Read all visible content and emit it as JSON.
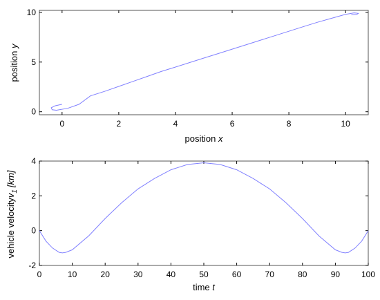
{
  "chart_data": [
    {
      "type": "line",
      "title": "",
      "xlabel": "position",
      "xlabel_var": "x",
      "ylabel": "position",
      "ylabel_var": "y",
      "xlim": [
        -0.8,
        10.8
      ],
      "ylim": [
        -0.3,
        10.2
      ],
      "xticks": [
        0,
        2,
        4,
        6,
        8,
        10
      ],
      "yticks": [
        0,
        5,
        10
      ],
      "grid": false,
      "line_color": "#8080ff",
      "series": [
        {
          "x": [
            0.0,
            -0.25,
            -0.38,
            -0.35,
            -0.2,
            0.2,
            0.6,
            1.0,
            1.5,
            2.0,
            2.5,
            3.0,
            3.5,
            4.0,
            4.5,
            5.0,
            5.5,
            6.0,
            6.5,
            7.0,
            7.5,
            8.0,
            8.5,
            9.0,
            9.5,
            10.0,
            10.3,
            10.45,
            10.4,
            10.2
          ],
          "y": [
            0.75,
            0.6,
            0.4,
            0.2,
            0.15,
            0.35,
            0.75,
            1.6,
            2.05,
            2.55,
            3.05,
            3.55,
            4.05,
            4.5,
            4.95,
            5.4,
            5.85,
            6.3,
            6.75,
            7.2,
            7.65,
            8.1,
            8.55,
            9.0,
            9.4,
            9.8,
            9.95,
            9.9,
            9.8,
            9.75
          ]
        }
      ]
    },
    {
      "type": "line",
      "title": "",
      "xlabel": "time",
      "xlabel_var": "t",
      "ylabel": "vehicle velocity",
      "ylabel_var": "v",
      "ylabel_sub": "1",
      "ylabel_unit": "[km]",
      "xlim": [
        0,
        100
      ],
      "ylim": [
        -2,
        4
      ],
      "xticks": [
        0,
        10,
        20,
        30,
        40,
        50,
        60,
        70,
        80,
        90,
        100
      ],
      "yticks": [
        -2,
        0,
        2,
        4
      ],
      "grid": false,
      "line_color": "#8080ff",
      "series": [
        {
          "x": [
            0,
            2,
            4,
            6,
            7,
            8,
            10,
            15,
            20,
            25,
            30,
            35,
            40,
            45,
            50,
            55,
            60,
            65,
            70,
            75,
            80,
            85,
            90,
            92,
            93,
            94,
            96,
            98,
            100
          ],
          "y": [
            0.0,
            -0.6,
            -1.0,
            -1.25,
            -1.28,
            -1.25,
            -1.1,
            -0.3,
            0.7,
            1.6,
            2.4,
            3.0,
            3.5,
            3.8,
            3.9,
            3.8,
            3.5,
            3.0,
            2.4,
            1.6,
            0.7,
            -0.3,
            -1.1,
            -1.25,
            -1.28,
            -1.25,
            -1.0,
            -0.6,
            0.0
          ]
        }
      ]
    }
  ]
}
